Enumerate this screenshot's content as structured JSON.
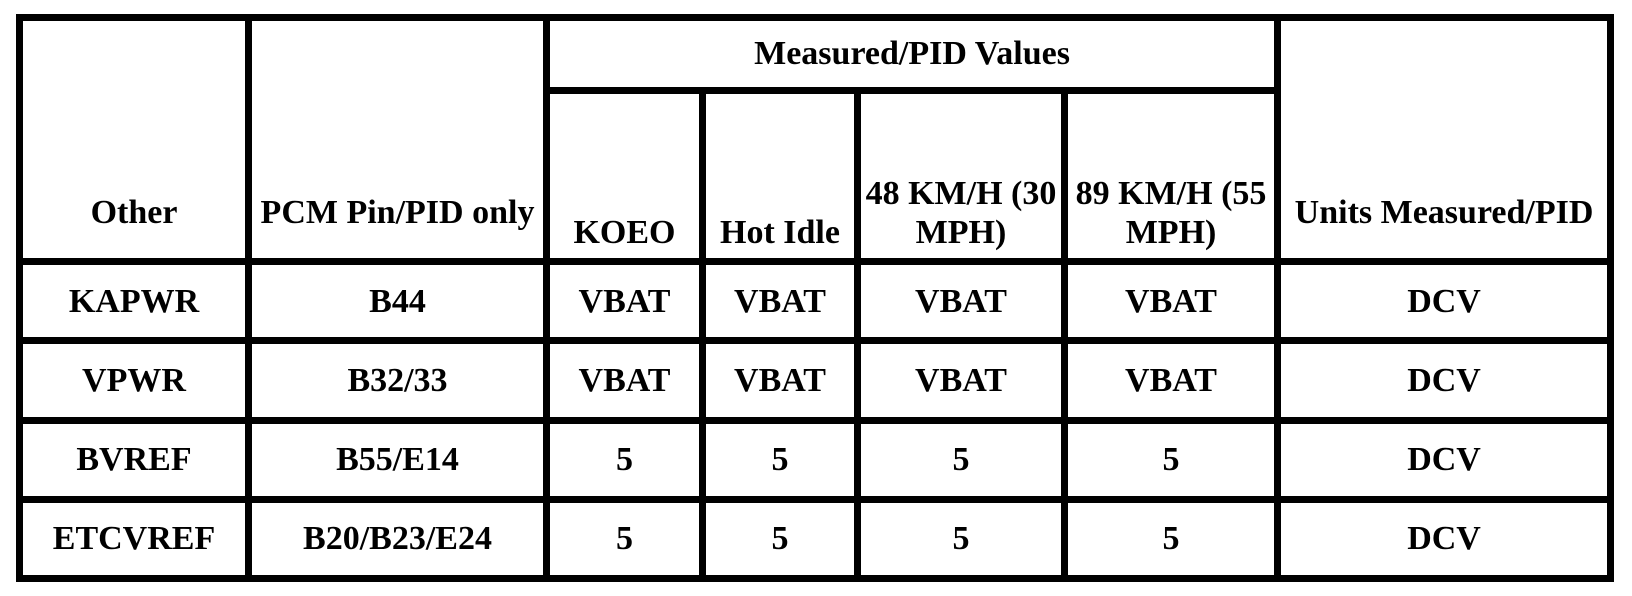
{
  "table": {
    "group_header": "Measured/PID Values",
    "columns": [
      "Other",
      "PCM Pin/PID only",
      "KOEO",
      "Hot Idle",
      "48 KM/H (30 MPH)",
      "89 KM/H (55 MPH)",
      "Units Measured/PID"
    ],
    "rows": [
      [
        "KAPWR",
        "B44",
        "VBAT",
        "VBAT",
        "VBAT",
        "VBAT",
        "DCV"
      ],
      [
        "VPWR",
        "B32/33",
        "VBAT",
        "VBAT",
        "VBAT",
        "VBAT",
        "DCV"
      ],
      [
        "BVREF",
        "B55/E14",
        "5",
        "5",
        "5",
        "5",
        "DCV"
      ],
      [
        "ETCVREF",
        "B20/B23/E24",
        "5",
        "5",
        "5",
        "5",
        "DCV"
      ]
    ]
  }
}
